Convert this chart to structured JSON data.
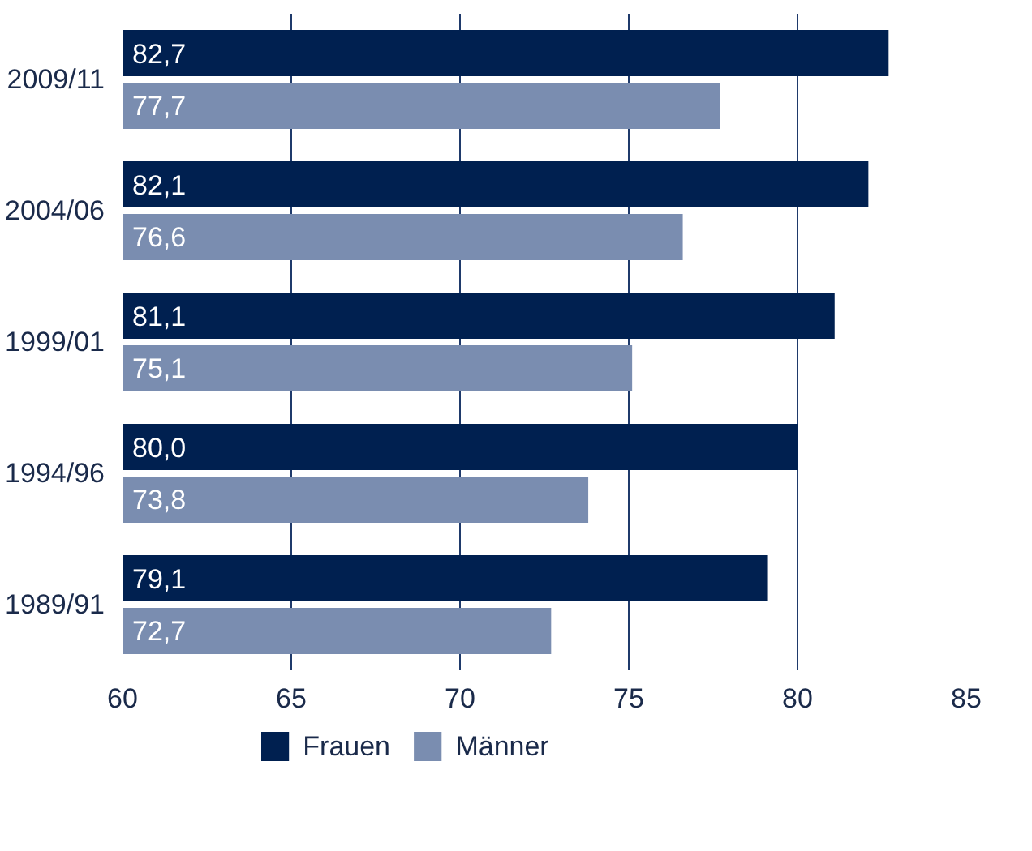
{
  "chart_data": {
    "type": "bar",
    "orientation": "horizontal",
    "categories": [
      "2009/11",
      "2004/06",
      "1999/01",
      "1994/96",
      "1989/91"
    ],
    "series": [
      {
        "name": "Frauen",
        "color": "#002050",
        "values": [
          82.7,
          82.1,
          81.1,
          80.0,
          79.1
        ],
        "value_labels": [
          "82,7",
          "82,1",
          "81,1",
          "80,0",
          "79,1"
        ]
      },
      {
        "name": "Männer",
        "color": "#7a8db0",
        "values": [
          77.7,
          76.6,
          75.1,
          73.8,
          72.7
        ],
        "value_labels": [
          "77,7",
          "76,6",
          "75,1",
          "73,8",
          "72,7"
        ]
      }
    ],
    "xlim": [
      60,
      85
    ],
    "xticks": [
      60,
      65,
      70,
      75,
      80,
      85
    ],
    "grid": "x",
    "legend": "bottom"
  }
}
